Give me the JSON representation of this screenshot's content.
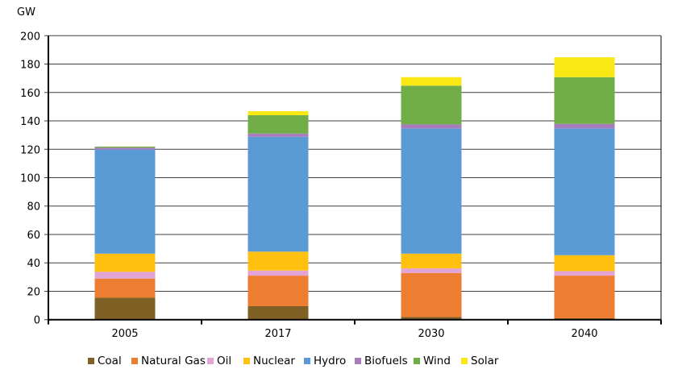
{
  "chart_data": {
    "type": "bar",
    "stacked": true,
    "title": "",
    "ylabel": "GW",
    "xlabel": "",
    "ylim": [
      0,
      200
    ],
    "yticks": [
      0,
      20,
      40,
      60,
      80,
      100,
      120,
      140,
      160,
      180,
      200
    ],
    "grid": true,
    "legend_position": "bottom",
    "categories": [
      "2005",
      "2017",
      "2030",
      "2040"
    ],
    "series": [
      {
        "name": "Coal",
        "color": "#7f6125",
        "values": [
          15.5,
          9.5,
          1.9,
          1.0
        ]
      },
      {
        "name": "Natural Gas",
        "color": "#ed7d31",
        "values": [
          13.4,
          21.5,
          31.0,
          30.0
        ]
      },
      {
        "name": "Oil",
        "color": "#e1a4d4",
        "values": [
          4.8,
          3.6,
          3.2,
          3.2
        ]
      },
      {
        "name": "Nuclear",
        "color": "#ffc010",
        "values": [
          12.8,
          13.3,
          10.4,
          11.2
        ]
      },
      {
        "name": "Hydro",
        "color": "#5b9bd5",
        "values": [
          73.3,
          80.9,
          88.2,
          89.3
        ]
      },
      {
        "name": "Biofuels",
        "color": "#a87bbd",
        "values": [
          1.3,
          2.3,
          2.8,
          3.2
        ]
      },
      {
        "name": "Wind",
        "color": "#70ad47",
        "values": [
          0.8,
          12.9,
          27.3,
          32.9
        ]
      },
      {
        "name": "Solar",
        "color": "#f9e814",
        "values": [
          0.0,
          2.8,
          6.0,
          14.0
        ]
      }
    ]
  }
}
